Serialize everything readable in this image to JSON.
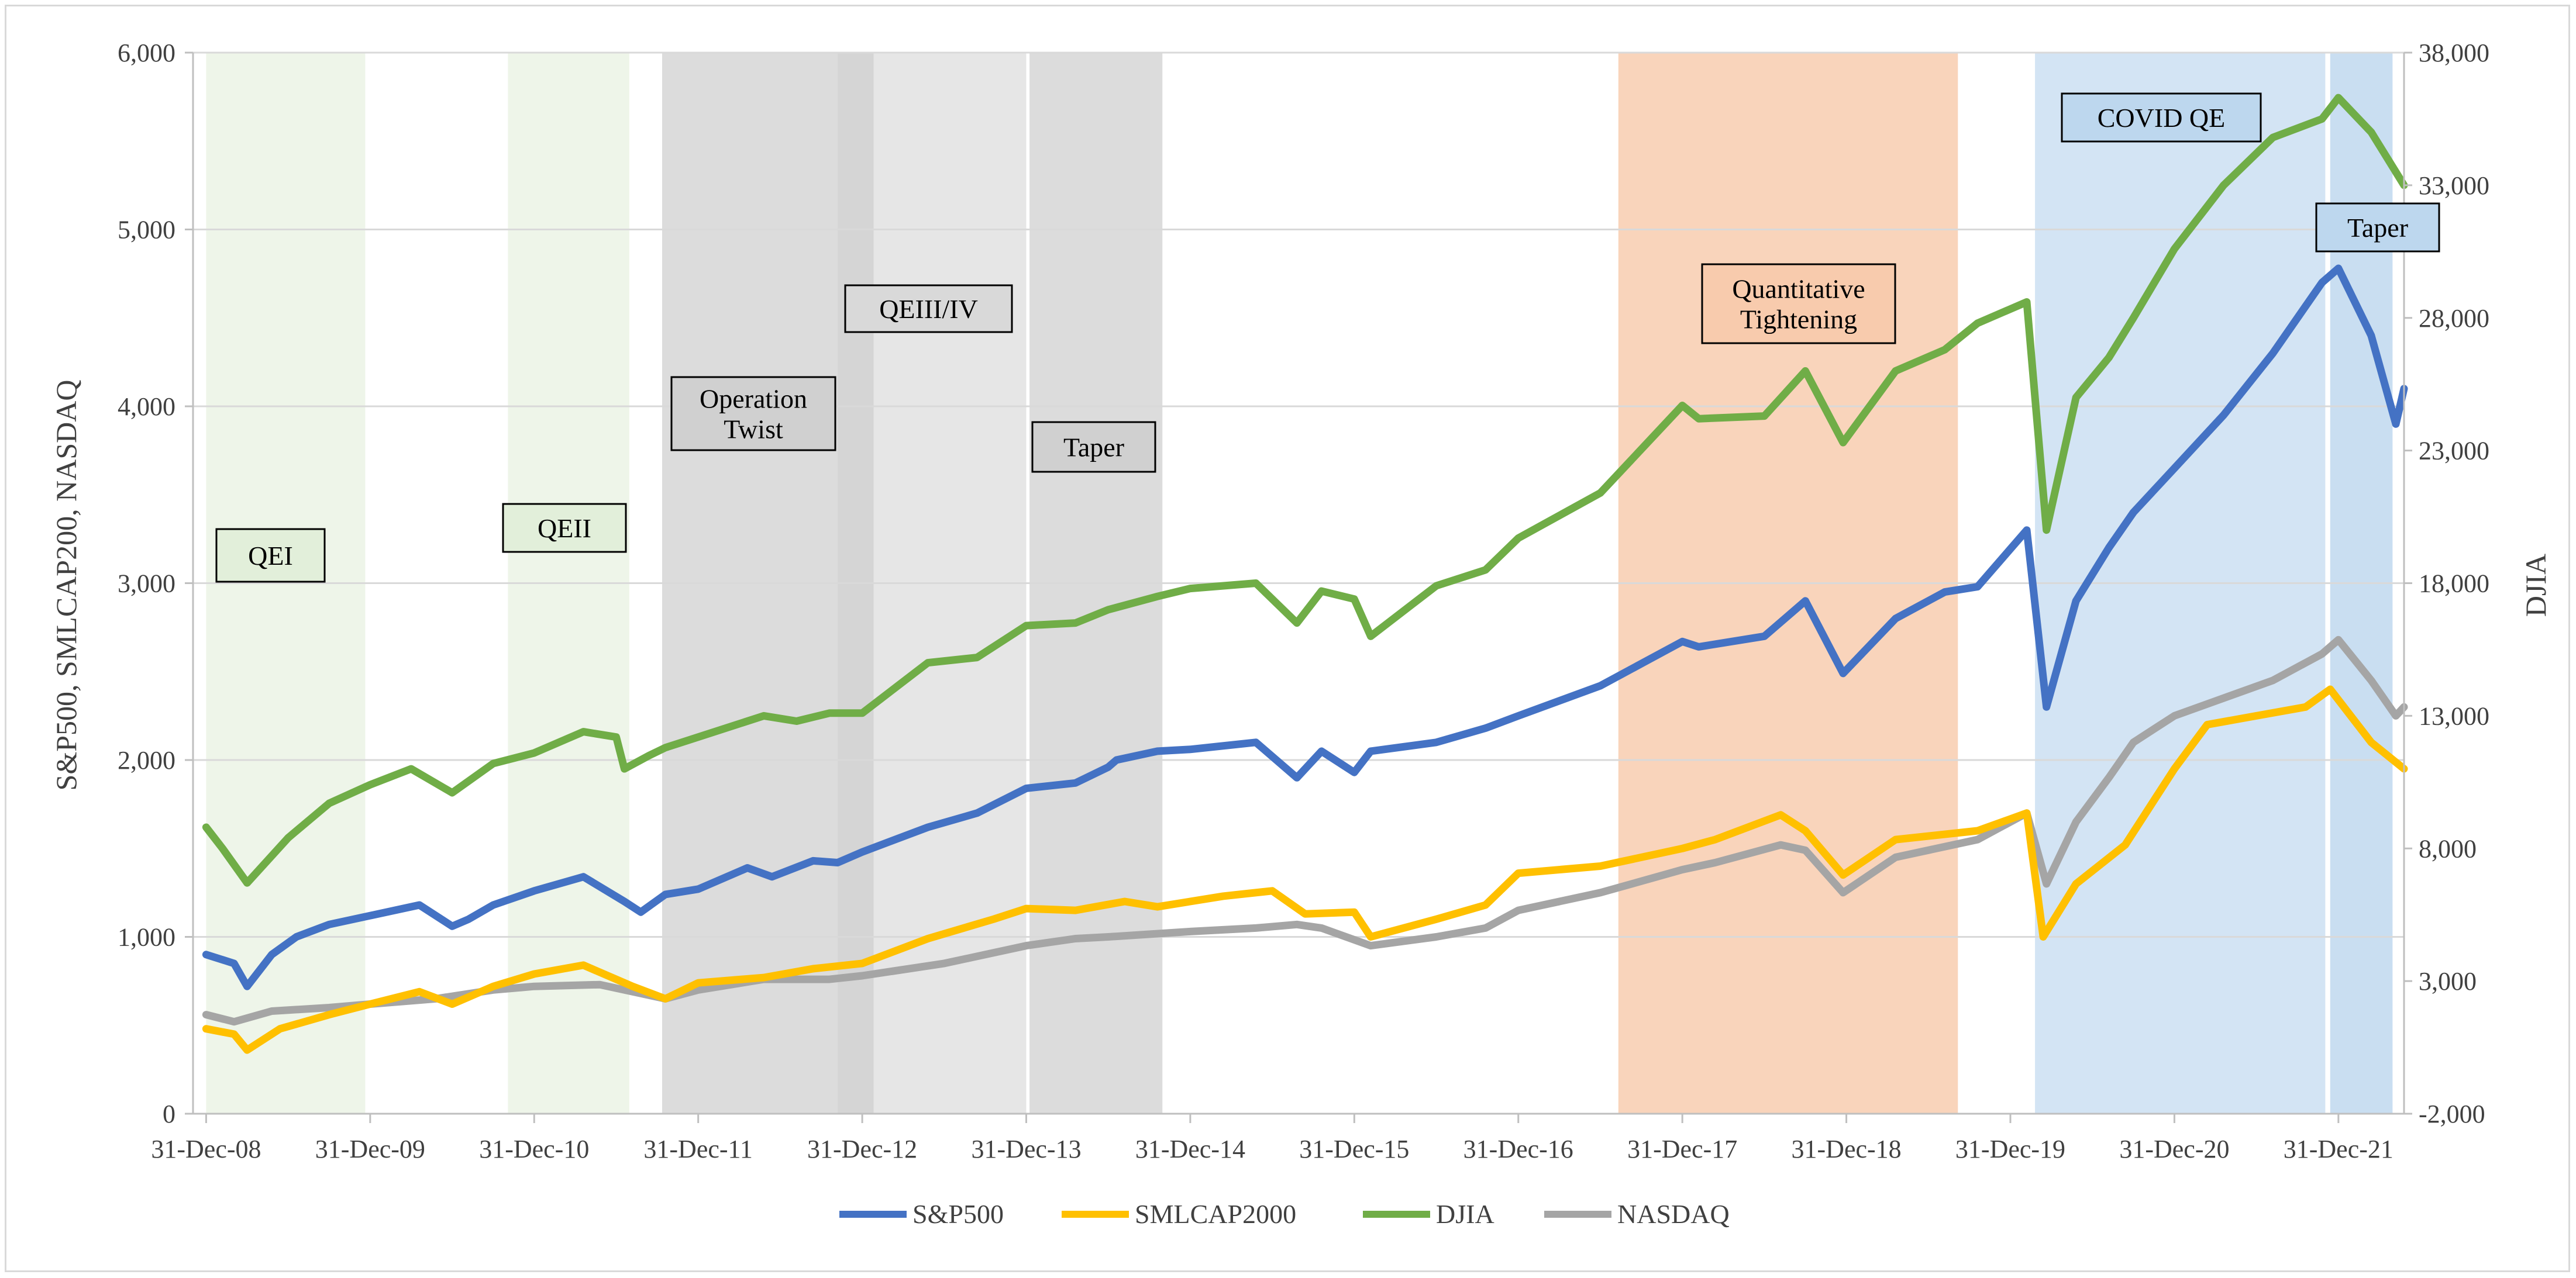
{
  "chart_data": {
    "type": "line",
    "xlabel": "",
    "ylabel_left": "S&P500, SMLCAP200, NASDAQ",
    "ylabel_right": "DJIA",
    "ylim_left": [
      0,
      6000
    ],
    "ylim_right": [
      -2000,
      38000
    ],
    "y_ticks_left": [
      "0",
      "1,000",
      "2,000",
      "3,000",
      "4,000",
      "5,000",
      "6,000"
    ],
    "y_ticks_right": [
      "-2,000",
      "3,000",
      "8,000",
      "13,000",
      "18,000",
      "23,000",
      "28,000",
      "33,000",
      "38,000"
    ],
    "x_ticks": [
      "31-Dec-08",
      "31-Dec-09",
      "31-Dec-10",
      "31-Dec-11",
      "31-Dec-12",
      "31-Dec-13",
      "31-Dec-14",
      "31-Dec-15",
      "31-Dec-16",
      "31-Dec-17",
      "31-Dec-18",
      "31-Dec-19",
      "31-Dec-20",
      "31-Dec-21"
    ],
    "x_range": [
      2008.92,
      2022.4
    ],
    "grid": "horizontal",
    "legend_position": "bottom",
    "series": [
      {
        "name": "S&P500",
        "axis": "left",
        "color": "#4472C4",
        "x": [
          2009.0,
          2009.17,
          2009.25,
          2009.4,
          2009.55,
          2009.75,
          2010.0,
          2010.3,
          2010.5,
          2010.6,
          2010.75,
          2011.0,
          2011.3,
          2011.55,
          2011.65,
          2011.8,
          2012.0,
          2012.3,
          2012.45,
          2012.7,
          2012.85,
          2013.0,
          2013.4,
          2013.7,
          2014.0,
          2014.3,
          2014.5,
          2014.55,
          2014.8,
          2015.0,
          2015.4,
          2015.65,
          2015.8,
          2016.0,
          2016.1,
          2016.5,
          2016.8,
          2017.0,
          2017.5,
          2018.0,
          2018.1,
          2018.5,
          2018.75,
          2018.98,
          2019.3,
          2019.6,
          2019.8,
          2020.1,
          2020.22,
          2020.4,
          2020.6,
          2020.75,
          2021.0,
          2021.3,
          2021.6,
          2021.9,
          2022.0,
          2022.2,
          2022.35,
          2022.4
        ],
        "values": [
          900,
          850,
          720,
          900,
          1000,
          1070,
          1120,
          1180,
          1060,
          1100,
          1180,
          1260,
          1340,
          1200,
          1140,
          1240,
          1270,
          1390,
          1340,
          1430,
          1420,
          1480,
          1620,
          1700,
          1840,
          1870,
          1960,
          2000,
          2050,
          2060,
          2100,
          1900,
          2050,
          1930,
          2050,
          2100,
          2180,
          2250,
          2420,
          2670,
          2640,
          2700,
          2900,
          2490,
          2800,
          2950,
          2980,
          3300,
          2300,
          2900,
          3200,
          3400,
          3650,
          3950,
          4300,
          4700,
          4780,
          4400,
          3900,
          4100
        ]
      },
      {
        "name": "SMLCAP2000",
        "axis": "left",
        "color": "#FFC000",
        "x": [
          2009.0,
          2009.17,
          2009.25,
          2009.45,
          2009.75,
          2010.0,
          2010.3,
          2010.5,
          2010.75,
          2011.0,
          2011.3,
          2011.6,
          2011.8,
          2012.0,
          2012.4,
          2012.7,
          2013.0,
          2013.4,
          2013.8,
          2014.0,
          2014.3,
          2014.6,
          2014.8,
          2015.2,
          2015.5,
          2015.7,
          2016.0,
          2016.1,
          2016.5,
          2016.8,
          2017.0,
          2017.5,
          2018.0,
          2018.2,
          2018.6,
          2018.75,
          2018.98,
          2019.3,
          2019.8,
          2020.1,
          2020.2,
          2020.4,
          2020.7,
          2021.0,
          2021.2,
          2021.5,
          2021.8,
          2021.95,
          2022.2,
          2022.4
        ],
        "values": [
          480,
          450,
          360,
          480,
          560,
          620,
          690,
          620,
          720,
          790,
          840,
          720,
          650,
          740,
          770,
          820,
          850,
          990,
          1100,
          1160,
          1150,
          1200,
          1170,
          1230,
          1260,
          1130,
          1140,
          1000,
          1100,
          1180,
          1360,
          1400,
          1500,
          1550,
          1690,
          1600,
          1350,
          1550,
          1600,
          1700,
          1000,
          1300,
          1520,
          1950,
          2200,
          2250,
          2300,
          2400,
          2100,
          1950
        ]
      },
      {
        "name": "DJIA",
        "axis": "right",
        "color": "#70AD47",
        "x": [
          2009.0,
          2009.1,
          2009.25,
          2009.5,
          2009.75,
          2010.0,
          2010.25,
          2010.5,
          2010.75,
          2011.0,
          2011.3,
          2011.5,
          2011.55,
          2011.7,
          2011.8,
          2012.0,
          2012.4,
          2012.6,
          2012.8,
          2013.0,
          2013.4,
          2013.7,
          2014.0,
          2014.3,
          2014.5,
          2014.8,
          2015.0,
          2015.4,
          2015.65,
          2015.8,
          2016.0,
          2016.1,
          2016.5,
          2016.8,
          2017.0,
          2017.5,
          2018.0,
          2018.1,
          2018.5,
          2018.75,
          2018.98,
          2019.3,
          2019.6,
          2019.8,
          2020.1,
          2020.22,
          2020.4,
          2020.6,
          2020.75,
          2021.0,
          2021.3,
          2021.6,
          2021.9,
          2022.0,
          2022.2,
          2022.35,
          2022.4
        ],
        "values": [
          8800,
          8000,
          6700,
          8400,
          9700,
          10400,
          11000,
          10100,
          11200,
          11600,
          12400,
          12200,
          11000,
          11500,
          11800,
          12200,
          13000,
          12800,
          13100,
          13100,
          15000,
          15200,
          16400,
          16500,
          17000,
          17500,
          17800,
          18000,
          16500,
          17700,
          17400,
          16000,
          17900,
          18500,
          19700,
          21400,
          24700,
          24200,
          24300,
          26000,
          23300,
          26000,
          26800,
          27800,
          28600,
          20000,
          25000,
          26500,
          28000,
          30600,
          33000,
          34800,
          35500,
          36300,
          35000,
          33500,
          33000
        ]
      },
      {
        "name": "NASDAQ",
        "axis": "left",
        "color": "#A5A5A5",
        "x": [
          2009.0,
          2009.17,
          2009.4,
          2009.75,
          2010.0,
          2010.4,
          2010.75,
          2011.0,
          2011.4,
          2011.65,
          2011.8,
          2012.0,
          2012.4,
          2012.8,
          2013.0,
          2013.5,
          2014.0,
          2014.3,
          2014.5,
          2015.0,
          2015.4,
          2015.65,
          2015.8,
          2016.1,
          2016.5,
          2016.8,
          2017.0,
          2017.5,
          2018.0,
          2018.2,
          2018.6,
          2018.75,
          2018.98,
          2019.3,
          2019.8,
          2020.1,
          2020.22,
          2020.4,
          2020.6,
          2020.75,
          2021.0,
          2021.3,
          2021.6,
          2021.9,
          2022.0,
          2022.2,
          2022.35,
          2022.4
        ],
        "values": [
          560,
          520,
          580,
          600,
          620,
          650,
          700,
          720,
          730,
          680,
          650,
          700,
          760,
          760,
          780,
          850,
          950,
          990,
          1000,
          1030,
          1050,
          1070,
          1050,
          950,
          1000,
          1050,
          1150,
          1250,
          1380,
          1420,
          1520,
          1490,
          1250,
          1450,
          1550,
          1700,
          1300,
          1650,
          1900,
          2100,
          2250,
          2350,
          2450,
          2600,
          2680,
          2450,
          2250,
          2300
        ]
      }
    ]
  },
  "annotations": [
    {
      "label": "QEI",
      "color": "#E2EFDA"
    },
    {
      "label": "QEII",
      "color": "#E2EFDA"
    },
    {
      "label": "Operation\nTwist",
      "color": "#D0D0D0"
    },
    {
      "label": "QEIII/IV",
      "color": "#D9D9D9"
    },
    {
      "label": "Taper",
      "color": "#D0D0D0"
    },
    {
      "label": "Quantitative\nTightening",
      "color": "#F8CBAD"
    },
    {
      "label": "COVID QE",
      "color": "#BDD7EE"
    },
    {
      "label": "Taper",
      "color": "#BDD7EE"
    }
  ],
  "shaded_periods": [
    {
      "from": 2009.0,
      "to": 2009.97,
      "color": "#E2EFDA",
      "opacity": 0.6
    },
    {
      "from": 2010.84,
      "to": 2011.58,
      "color": "#E2EFDA",
      "opacity": 0.6
    },
    {
      "from": 2011.78,
      "to": 2012.85,
      "color": "#C9C9C9",
      "opacity": 0.65
    },
    {
      "from": 2012.85,
      "to": 2013.07,
      "color": "#BFBFBF",
      "opacity": 0.65
    },
    {
      "from": 2013.07,
      "to": 2014.0,
      "color": "#D9D9D9",
      "opacity": 0.65
    },
    {
      "from": 2014.02,
      "to": 2014.83,
      "color": "#C9C9C9",
      "opacity": 0.65
    },
    {
      "from": 2017.61,
      "to": 2019.68,
      "color": "#F4B183",
      "opacity": 0.55
    },
    {
      "from": 2020.15,
      "to": 2021.92,
      "color": "#9DC3E6",
      "opacity": 0.45
    },
    {
      "from": 2021.95,
      "to": 2022.33,
      "color": "#9DC3E6",
      "opacity": 0.55
    }
  ]
}
